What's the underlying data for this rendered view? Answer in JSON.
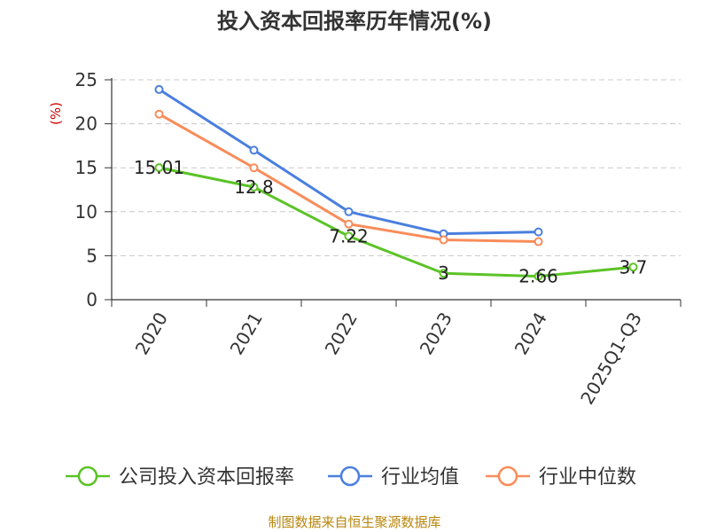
{
  "chart_data": {
    "type": "line",
    "title": "投入资本回报率历年情况(%)",
    "ylabel": "(%)",
    "xlabel": "",
    "ylim": [
      0,
      25
    ],
    "yticks": [
      0,
      5,
      10,
      15,
      20,
      25
    ],
    "grid": "horizontal-dashed",
    "legend_position": "bottom",
    "categories": [
      "2020",
      "2021",
      "2022",
      "2023",
      "2024",
      "2025Q1-Q3"
    ],
    "series": [
      {
        "name": "公司投入资本回报率",
        "color": "#5bc326",
        "values": [
          15.01,
          12.8,
          7.22,
          3,
          2.66,
          3.7
        ],
        "labels": [
          "15.01",
          "12.8",
          "7.22",
          "3",
          "2.66",
          "3.7"
        ]
      },
      {
        "name": "行业均值",
        "color": "#4a7fde",
        "values": [
          23.9,
          17.0,
          10.0,
          7.5,
          7.7,
          null
        ]
      },
      {
        "name": "行业中位数",
        "color": "#f98c5a",
        "values": [
          21.1,
          15.0,
          8.6,
          6.8,
          6.6,
          null
        ]
      }
    ]
  },
  "source": "制图数据来自恒生聚源数据库"
}
